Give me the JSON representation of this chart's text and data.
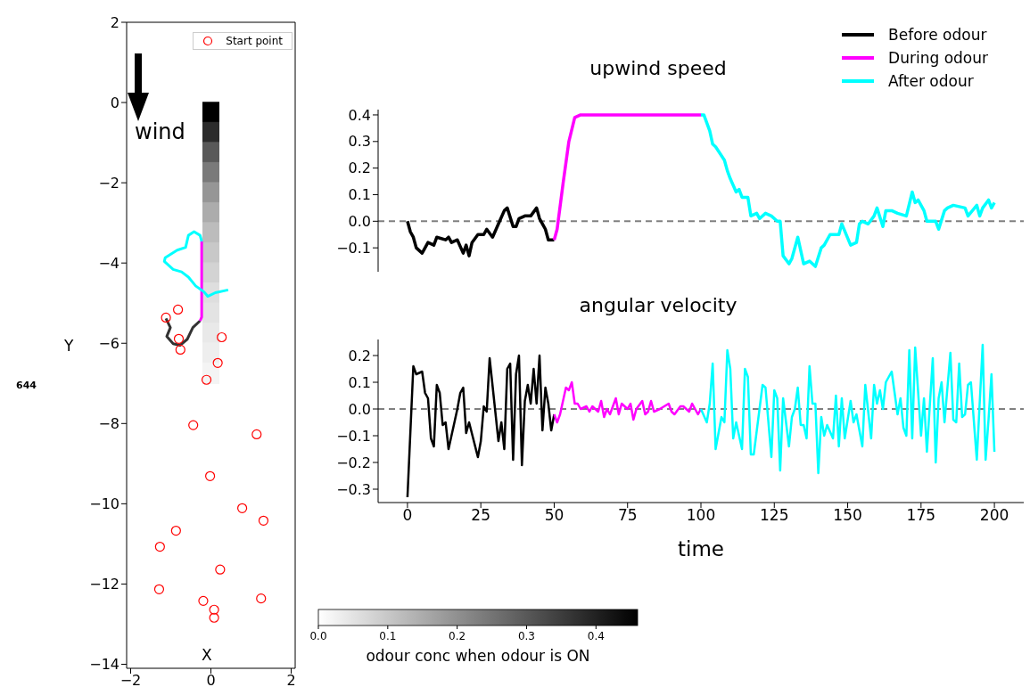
{
  "chart_data": [
    {
      "type": "scatter",
      "xlabel": "X",
      "ylabel": "Y",
      "xlim": [
        -2.1,
        2.1
      ],
      "xticks": [
        -2,
        0,
        2
      ],
      "ylim": [
        -14.1,
        2
      ],
      "yticks": [
        -14,
        -12,
        -10,
        -8,
        -6,
        -4,
        -2,
        0,
        2
      ],
      "legend": "top right",
      "clim": [
        0,
        0.46
      ],
      "cticks": [
        {
          "value": 0,
          "label": "0.0"
        },
        {
          "value": 0.1,
          "label": "0.1"
        },
        {
          "value": 0.2,
          "label": "0.2"
        },
        {
          "value": 0.3,
          "label": "0.3"
        },
        {
          "value": 0.4,
          "label": "0.4"
        }
      ],
      "clabel": "odour conc when odour is ON",
      "annotations": [
        "wind",
        "644"
      ],
      "series": [
        {
          "marker": "square",
          "x": [
            0,
            0,
            0,
            0,
            0,
            0,
            0,
            0,
            0,
            0,
            0,
            0,
            0,
            0
          ],
          "values": [
            -0.25,
            -0.75,
            -1.25,
            -1.75,
            -2.25,
            -2.75,
            -3.25,
            -3.75,
            -4.25,
            -4.75,
            -5.25,
            -5.75,
            -6.25,
            -6.75
          ],
          "cvalues": [
            0.46,
            0.38,
            0.3,
            0.24,
            0.19,
            0.15,
            0.12,
            0.1,
            0.08,
            0.06,
            0.05,
            0.04,
            0.03,
            0.02
          ],
          "colors": [
            "#000000",
            "#2c2c2c",
            "#595959",
            "#7a7a7a",
            "#969696",
            "#acacac",
            "#bdbdbd",
            "#c8c8c8",
            "#d3d3d3",
            "#dedede",
            "#e3e3e3",
            "#e9e9e9",
            "#eeeeee",
            "#f4f4f4"
          ]
        },
        {
          "type": "line",
          "color": "#333333",
          "x": [
            -1.12,
            -1.01,
            -1.1,
            -0.94,
            -0.77,
            -0.59,
            -0.45,
            -0.27
          ],
          "values": [
            -5.38,
            -5.61,
            -5.83,
            -6.01,
            -6.05,
            -5.9,
            -5.61,
            -5.44
          ]
        },
        {
          "type": "line",
          "color": "#ff00ff",
          "x": [
            -0.27,
            -0.23,
            -0.23
          ],
          "values": [
            -5.44,
            -5.35,
            -3.46
          ]
        },
        {
          "type": "line",
          "color": "#00ffff",
          "x": [
            -0.23,
            -0.27,
            -0.42,
            -0.56,
            -0.63,
            -0.84,
            -1.14,
            -1.16,
            -0.94,
            -0.73,
            -0.56,
            -0.38,
            -0.17,
            -0.08,
            0.11,
            0.43
          ],
          "values": [
            -3.46,
            -3.31,
            -3.22,
            -3.31,
            -3.61,
            -3.68,
            -3.87,
            -3.96,
            -4.16,
            -4.22,
            -4.35,
            -4.57,
            -4.72,
            -4.83,
            -4.74,
            -4.67
          ]
        },
        {
          "name": "Start point",
          "color": "#ff0000",
          "marker": "circle",
          "x": [
            -1.12,
            -0.82,
            -0.8,
            -0.76,
            0.27,
            0.17,
            -0.11,
            -0.44,
            1.14,
            -0.02,
            0.78,
            1.31,
            -0.87,
            -1.27,
            0.23,
            -1.29,
            -0.19,
            1.25,
            0.08,
            0.08
          ],
          "values": [
            -5.36,
            -5.16,
            -5.89,
            -6.16,
            -5.85,
            -6.49,
            -6.91,
            -8.04,
            -8.27,
            -9.31,
            -10.11,
            -10.42,
            -10.67,
            -11.07,
            -11.64,
            -12.13,
            -12.42,
            -12.36,
            -12.64,
            -12.84
          ]
        }
      ]
    },
    {
      "type": "line",
      "title": "upwind speed",
      "xlim": [
        -10,
        210
      ],
      "xticks": [
        0,
        25,
        50,
        75,
        100,
        125,
        150,
        175,
        200
      ],
      "ylim": [
        -0.19,
        0.42
      ],
      "yticks": [
        {
          "value": -0.1,
          "label": "−0.1"
        },
        {
          "value": 0,
          "label": "0.0"
        },
        {
          "value": 0.1,
          "label": "0.1"
        },
        {
          "value": 0.2,
          "label": "0.2"
        },
        {
          "value": 0.3,
          "label": "0.3"
        },
        {
          "value": 0.4,
          "label": "0.4"
        }
      ],
      "tick_labels": "y",
      "legend": "top right",
      "ref_lines": [
        {
          "axis": "y",
          "value": 0,
          "color": "#808080",
          "line_style": "dashed"
        }
      ],
      "series": [
        {
          "name": "Before odour",
          "color": "#000000",
          "x": [
            0,
            1,
            2,
            3,
            5,
            7,
            9,
            10,
            13,
            14,
            15,
            17,
            19,
            20,
            21,
            22,
            24,
            26,
            27,
            29,
            31,
            33,
            34,
            36,
            37,
            38,
            40,
            42,
            44,
            45,
            47,
            48,
            50
          ],
          "values": [
            0,
            -0.04,
            -0.06,
            -0.1,
            -0.12,
            -0.08,
            -0.09,
            -0.06,
            -0.07,
            -0.06,
            -0.08,
            -0.07,
            -0.12,
            -0.09,
            -0.13,
            -0.08,
            -0.05,
            -0.05,
            -0.03,
            -0.06,
            -0.01,
            0.04,
            0.05,
            -0.02,
            -0.02,
            0.01,
            0.02,
            0.02,
            0.05,
            0.01,
            -0.03,
            -0.07,
            -0.07
          ]
        },
        {
          "name": "During odour",
          "color": "#ff00ff",
          "x": [
            50,
            51,
            53,
            55,
            57,
            59,
            100
          ],
          "values": [
            -0.07,
            -0.03,
            0.14,
            0.3,
            0.39,
            0.4,
            0.4
          ]
        },
        {
          "name": "After odour",
          "color": "#00ffff",
          "x": [
            100,
            101,
            103,
            104,
            105,
            108,
            109,
            110,
            112,
            113,
            114,
            116,
            117,
            119,
            120,
            122,
            124,
            126,
            127,
            128,
            130,
            131,
            133,
            135,
            137,
            139,
            141,
            142,
            144,
            147,
            148,
            151,
            153,
            154,
            155,
            157,
            159,
            160,
            162,
            163,
            165,
            167,
            170,
            172,
            173,
            174,
            176,
            177,
            180,
            181,
            183,
            184,
            186,
            190,
            191,
            194,
            195,
            196,
            198,
            199,
            200
          ],
          "values": [
            0.4,
            0.4,
            0.34,
            0.29,
            0.28,
            0.23,
            0.19,
            0.16,
            0.11,
            0.12,
            0.09,
            0.09,
            0.02,
            0.03,
            0.01,
            0.03,
            0.02,
            0,
            0,
            -0.13,
            -0.16,
            -0.14,
            -0.06,
            -0.16,
            -0.15,
            -0.17,
            -0.1,
            -0.09,
            -0.05,
            -0.05,
            -0.01,
            -0.09,
            -0.08,
            -0.01,
            0,
            -0.01,
            0.02,
            0.05,
            -0.02,
            0.04,
            0.04,
            0.03,
            0.02,
            0.11,
            0.07,
            0.08,
            0.04,
            0,
            0,
            -0.03,
            0.04,
            0.05,
            0.06,
            0.05,
            0.02,
            0.06,
            0.02,
            0.05,
            0.08,
            0.05,
            0.07
          ]
        }
      ]
    },
    {
      "type": "line",
      "title": "angular velocity",
      "xlabel": "time",
      "xlim": [
        -10,
        210
      ],
      "xticks": [
        0,
        25,
        50,
        75,
        100,
        125,
        150,
        175,
        200
      ],
      "ylim": [
        -0.35,
        0.26
      ],
      "yticks": [
        {
          "value": -0.3,
          "label": "−0.3"
        },
        {
          "value": -0.2,
          "label": "−0.2"
        },
        {
          "value": -0.1,
          "label": "−0.1"
        },
        {
          "value": 0,
          "label": "0.0"
        },
        {
          "value": 0.1,
          "label": "0.1"
        },
        {
          "value": 0.2,
          "label": "0.2"
        }
      ],
      "ref_lines": [
        {
          "axis": "y",
          "value": 0,
          "color": "#808080",
          "line_style": "dashed"
        }
      ],
      "series": [
        {
          "color": "#000000",
          "x": [
            0,
            2,
            3,
            5,
            6,
            7,
            8,
            9,
            10,
            11,
            12,
            13,
            14,
            17,
            18,
            19,
            20,
            21,
            24,
            25,
            26,
            27,
            28,
            31,
            32,
            33,
            34,
            35,
            36,
            37,
            38,
            39,
            40,
            41,
            42,
            43,
            44,
            45,
            46,
            47,
            48,
            49,
            50
          ],
          "values": [
            -0.33,
            0.16,
            0.13,
            0.14,
            0.06,
            0.04,
            -0.11,
            -0.14,
            0.09,
            0.06,
            -0.06,
            -0.05,
            -0.15,
            0,
            0.06,
            0.08,
            -0.09,
            -0.05,
            -0.18,
            -0.12,
            0.01,
            -0.01,
            0.19,
            -0.12,
            -0.05,
            -0.15,
            0.15,
            0.17,
            -0.19,
            0.13,
            0.2,
            -0.21,
            0.03,
            0.09,
            0.02,
            0.15,
            0.02,
            0.2,
            -0.08,
            0.08,
            0.02,
            -0.08,
            -0.02
          ]
        },
        {
          "color": "#ff00ff",
          "x": [
            50,
            51,
            52,
            54,
            55,
            56,
            57,
            58,
            59,
            61,
            62,
            63,
            65,
            66,
            67,
            68,
            69,
            71,
            72,
            73,
            75,
            76,
            77,
            78,
            80,
            81,
            82,
            83,
            84,
            86,
            89,
            90,
            91,
            93,
            94,
            96,
            97,
            99,
            100
          ],
          "values": [
            -0.02,
            -0.05,
            -0.02,
            0.08,
            0.07,
            0.1,
            0.02,
            0.02,
            0,
            0.01,
            -0.01,
            0.01,
            -0.01,
            0.03,
            -0.03,
            0,
            -0.02,
            0.04,
            -0.02,
            0.02,
            0,
            0.02,
            -0.04,
            0,
            0.03,
            -0.02,
            -0.01,
            0.03,
            -0.01,
            0,
            0.02,
            -0.01,
            -0.02,
            0.01,
            0.01,
            -0.01,
            0.02,
            -0.02,
            0
          ]
        },
        {
          "color": "#00ffff",
          "x": [
            100,
            102,
            103,
            104,
            105,
            107,
            108,
            109,
            110,
            111,
            112,
            114,
            115,
            116,
            117,
            118,
            121,
            122,
            124,
            125,
            126,
            127,
            128,
            130,
            131,
            132,
            133,
            134,
            135,
            136,
            137,
            138,
            139,
            140,
            141,
            142,
            143,
            145,
            146,
            147,
            148,
            149,
            151,
            152,
            153,
            155,
            156,
            158,
            159,
            160,
            161,
            162,
            163,
            165,
            167,
            168,
            169,
            170,
            171,
            172,
            173,
            175,
            176,
            177,
            179,
            180,
            181,
            182,
            183,
            185,
            186,
            187,
            188,
            189,
            190,
            191,
            192,
            194,
            196,
            197,
            198,
            199,
            200
          ],
          "values": [
            0,
            -0.05,
            0.02,
            0.17,
            -0.15,
            -0.03,
            -0.05,
            0.22,
            0.15,
            -0.11,
            -0.05,
            -0.15,
            0.15,
            0.12,
            -0.17,
            -0.17,
            0.09,
            0.08,
            -0.18,
            0.07,
            0.04,
            -0.23,
            0.04,
            -0.14,
            -0.03,
            0,
            0.08,
            -0.06,
            -0.06,
            -0.11,
            0.16,
            0.02,
            0.02,
            -0.24,
            -0.03,
            -0.1,
            -0.06,
            -0.11,
            0.05,
            -0.14,
            0.04,
            -0.11,
            0.03,
            -0.05,
            -0.02,
            -0.14,
            0.09,
            -0.11,
            0.09,
            0.02,
            0.07,
            0,
            0.1,
            0.14,
            -0.02,
            0.04,
            -0.07,
            -0.1,
            0.22,
            -0.11,
            0.23,
            -0.1,
            0.04,
            -0.16,
            0.19,
            -0.2,
            0.04,
            0.1,
            -0.05,
            0.21,
            -0.04,
            -0.05,
            0.17,
            -0.03,
            -0.02,
            0.09,
            0.1,
            -0.19,
            0.24,
            -0.19,
            -0.04,
            0.13,
            -0.16
          ]
        }
      ]
    }
  ]
}
